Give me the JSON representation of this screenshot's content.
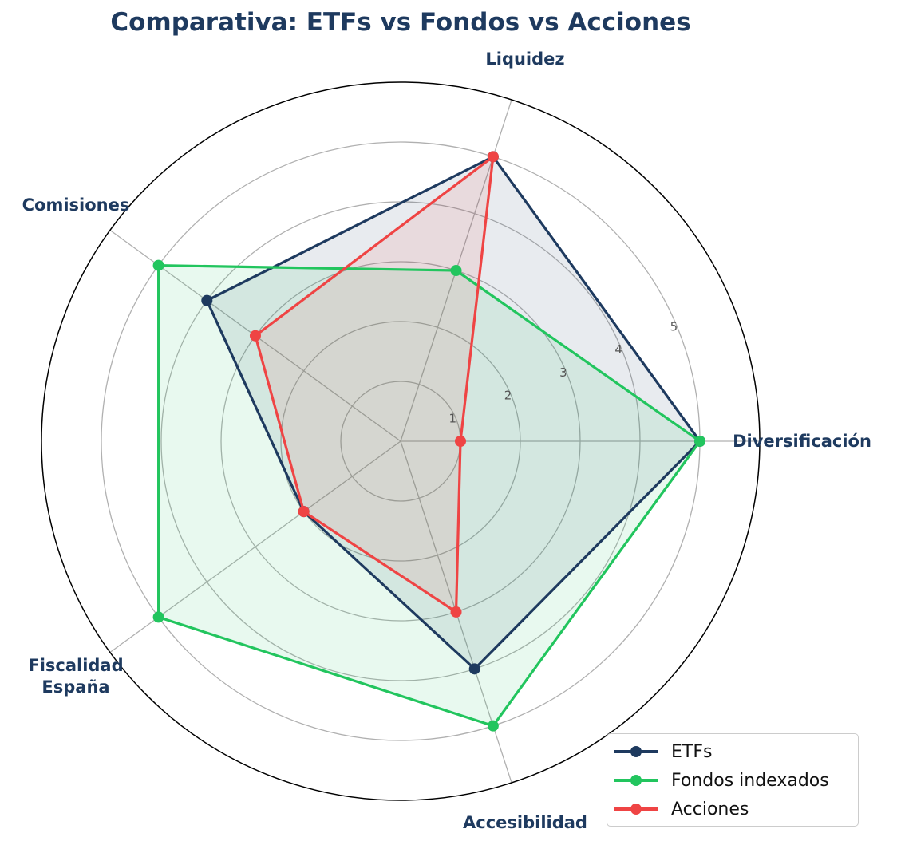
{
  "chart_data": {
    "type": "radar",
    "title": "Comparativa: ETFs vs Fondos vs Acciones",
    "categories": [
      "Diversificación",
      "Liquidez",
      "Comisiones",
      "Fiscalidad\nEspaña",
      "Accesibilidad"
    ],
    "series": [
      {
        "name": "ETFs",
        "color": "#1e3a5f",
        "fill_opacity": 0.1,
        "values": [
          5,
          5,
          4,
          2,
          4
        ]
      },
      {
        "name": "Fondos indexados",
        "color": "#22c55e",
        "fill_opacity": 0.1,
        "values": [
          5,
          3,
          5,
          5,
          5
        ]
      },
      {
        "name": "Acciones",
        "color": "#ef4444",
        "fill_opacity": 0.1,
        "values": [
          1,
          5,
          3,
          2,
          3
        ]
      }
    ],
    "radial_ticks": [
      1,
      2,
      3,
      4,
      5
    ],
    "rlim": [
      0,
      6
    ],
    "grid": true,
    "legend_position": "lower right"
  },
  "legend": {
    "items": [
      {
        "label": "ETFs",
        "color": "#1e3a5f"
      },
      {
        "label": "Fondos indexados",
        "color": "#22c55e"
      },
      {
        "label": "Acciones",
        "color": "#ef4444"
      }
    ]
  }
}
